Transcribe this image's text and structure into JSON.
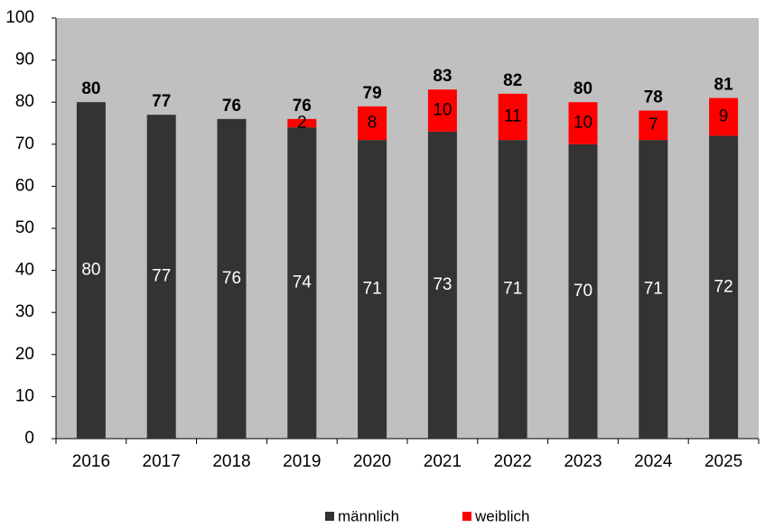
{
  "chart_data": {
    "type": "stacked_bar",
    "categories": [
      "2016",
      "2017",
      "2018",
      "2019",
      "2020",
      "2021",
      "2022",
      "2023",
      "2024",
      "2025"
    ],
    "series": [
      {
        "name": "männlich",
        "color": "#333333",
        "label_color": "#ffffff",
        "values": [
          80,
          77,
          76,
          74,
          71,
          73,
          71,
          70,
          71,
          72
        ]
      },
      {
        "name": "weiblich",
        "color": "#ff0000",
        "label_color": "#000000",
        "values": [
          null,
          null,
          null,
          2,
          8,
          10,
          11,
          10,
          7,
          9
        ]
      }
    ],
    "totals": [
      80,
      77,
      76,
      76,
      79,
      83,
      82,
      80,
      78,
      81
    ],
    "ylim": [
      0,
      100
    ],
    "yticks": [
      0,
      10,
      20,
      30,
      40,
      50,
      60,
      70,
      80,
      90,
      100
    ],
    "plot_background": "#c0c0c0"
  }
}
